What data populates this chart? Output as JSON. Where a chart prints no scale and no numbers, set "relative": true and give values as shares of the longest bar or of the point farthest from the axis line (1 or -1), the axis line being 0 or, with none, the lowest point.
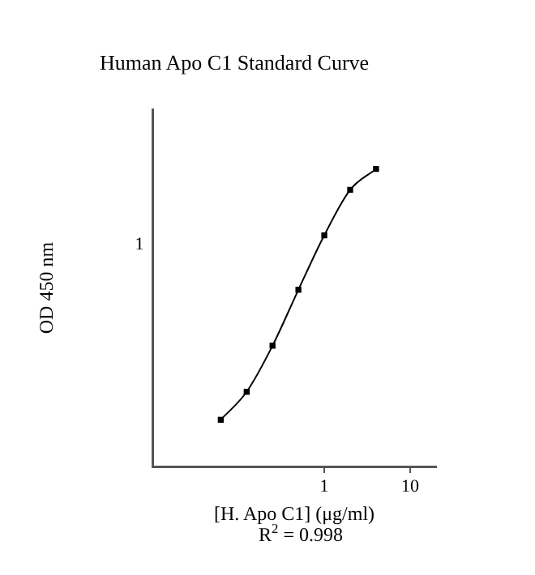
{
  "chart_data": {
    "type": "line",
    "title": "Human Apo C1 Standard Curve",
    "xlabel": "[H. Apo C1] (μg/ml)",
    "ylabel": "OD 450 nm",
    "annotations": [
      "R$^{2}$ = 0.998",
      "1"
    ],
    "x": [
      0.0625,
      0.125,
      0.25,
      0.5,
      1,
      2,
      4
    ],
    "series": [
      {
        "color": "#000000",
        "values": [
          0.157,
          0.251,
          0.406,
          0.594,
          0.777,
          0.93,
          1
        ]
      }
    ],
    "relative": true,
    "log": "x",
    "xlim": [
      0.01,
      20
    ],
    "xticks": [
      1,
      10
    ],
    "grid": false,
    "legend": false,
    "marker": "square",
    "line_style": "solid"
  }
}
